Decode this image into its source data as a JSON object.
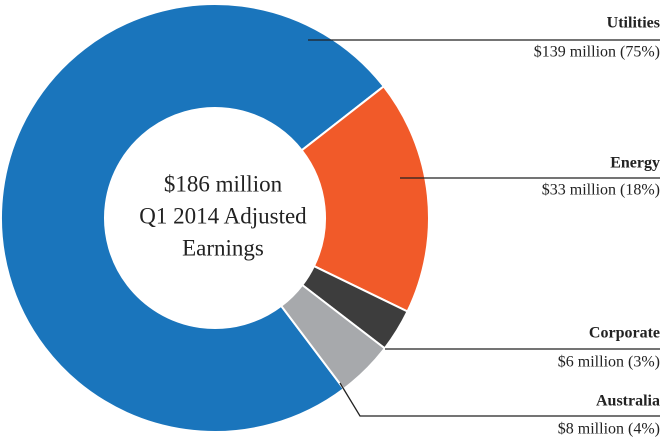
{
  "chart_data": {
    "type": "donut",
    "center_text": [
      "$186 million",
      "Q1 2014 Adjusted",
      "Earnings"
    ],
    "categories": [
      "Utilities",
      "Energy",
      "Corporate",
      "Australia"
    ],
    "values": [
      139,
      33,
      6,
      8
    ],
    "value_labels": [
      "$139 million (75%)",
      "$33 million (18%)",
      "$6 million (3%)",
      "$8 million (4%)"
    ],
    "colors": [
      "#1a75bc",
      "#f15a29",
      "#3d3d3d",
      "#a7a9ac"
    ]
  }
}
